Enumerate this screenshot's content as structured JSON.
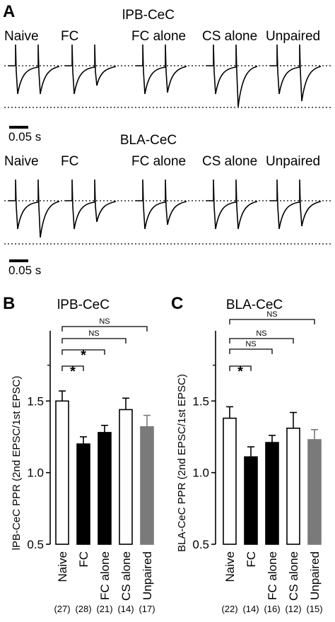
{
  "panels": {
    "A": "A",
    "B": "B",
    "C": "C"
  },
  "traces": {
    "groups": [
      "Naive",
      "FC",
      "FC alone",
      "CS alone",
      "Unpaired"
    ],
    "row1_title": "lPB-CeC",
    "row2_title": "BLA-CeC",
    "scale_label": "0.05 s",
    "row1_relative_amplitude": [
      1.0,
      0.7,
      0.95,
      1.45,
      1.25
    ],
    "row2_relative_amplitude": [
      1.3,
      0.75,
      0.85,
      1.0,
      0.9
    ]
  },
  "colors": {
    "naive": "#ffffff",
    "fc": "#000000",
    "fc_alone": "#000000",
    "cs_alone": "#ffffff",
    "unpaired": "#7a7a7a",
    "stroke": "#000000"
  },
  "chart_data": [
    {
      "type": "bar",
      "panel": "B",
      "title": "lPB-CeC",
      "ylabel": "lPB-CeC PPR (2nd EPSC/1st EPSC)",
      "ylim": [
        0.5,
        2.0
      ],
      "yticks": [
        "0.5",
        "1.0",
        "1.5"
      ],
      "categories": [
        "Naive",
        "FC",
        "FC alone",
        "CS alone",
        "Unpaired"
      ],
      "n_labels": [
        "(27)",
        "(28)",
        "(21)",
        "(14)",
        "(17)"
      ],
      "values": [
        1.5,
        1.2,
        1.28,
        1.44,
        1.32
      ],
      "errors": [
        0.07,
        0.05,
        0.05,
        0.08,
        0.08
      ],
      "comparisons": [
        {
          "from": 0,
          "to": 1,
          "label": "*"
        },
        {
          "from": 0,
          "to": 2,
          "label": "*"
        },
        {
          "from": 0,
          "to": 3,
          "label": "NS"
        },
        {
          "from": 0,
          "to": 4,
          "label": "NS"
        }
      ]
    },
    {
      "type": "bar",
      "panel": "C",
      "title": "BLA-CeC",
      "ylabel": "BLA-CeC PPR (2nd EPSC/1st EPSC)",
      "ylim": [
        0.5,
        2.0
      ],
      "yticks": [
        "0.5",
        "1.0",
        "1.5"
      ],
      "categories": [
        "Naive",
        "FC",
        "FC alone",
        "CS alone",
        "Unpaired"
      ],
      "n_labels": [
        "(22)",
        "(14)",
        "(16)",
        "(12)",
        "(15)"
      ],
      "values": [
        1.38,
        1.11,
        1.21,
        1.31,
        1.23
      ],
      "errors": [
        0.08,
        0.07,
        0.05,
        0.11,
        0.07
      ],
      "comparisons": [
        {
          "from": 0,
          "to": 1,
          "label": "*"
        },
        {
          "from": 0,
          "to": 2,
          "label": "NS"
        },
        {
          "from": 0,
          "to": 3,
          "label": "NS"
        },
        {
          "from": 0,
          "to": 4,
          "label": "NS"
        }
      ]
    }
  ]
}
